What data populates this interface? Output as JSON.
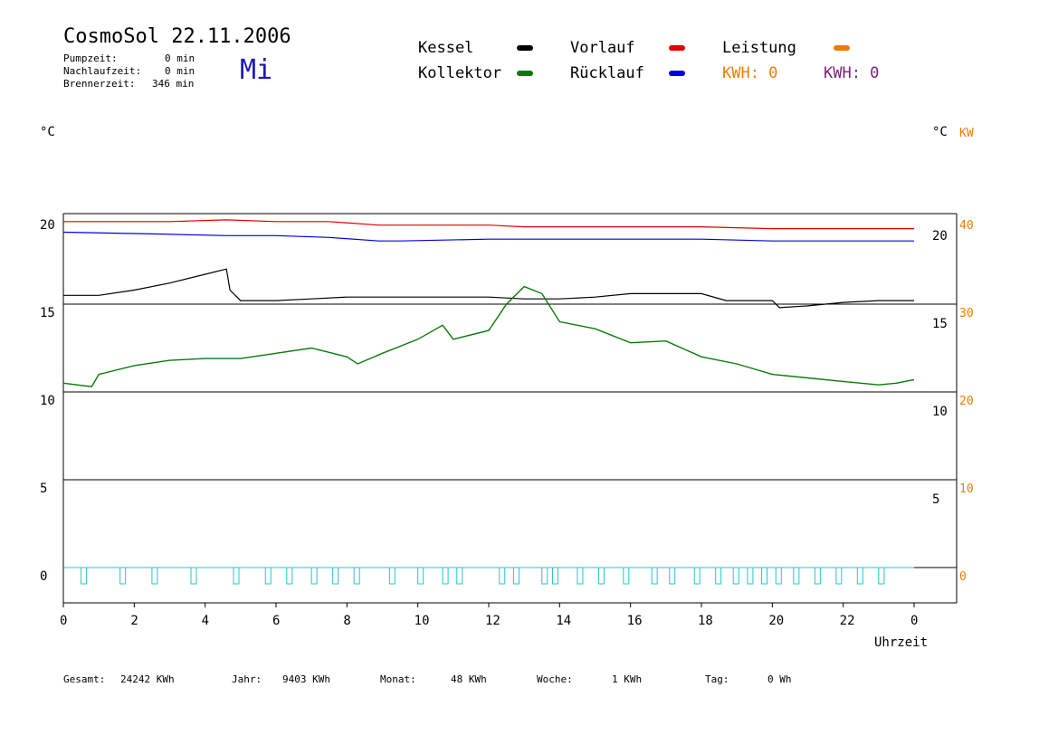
{
  "header": {
    "title": "CosmoSol 22.11.2006",
    "day": "Mi",
    "stats": [
      {
        "label": "Pumpzeit:",
        "value": "0 min"
      },
      {
        "label": "Nachlaufzeit:",
        "value": "0 min"
      },
      {
        "label": "Brennerzeit:",
        "value": "346 min"
      }
    ]
  },
  "legend": {
    "kessel": {
      "label": "Kessel",
      "color": "#000000"
    },
    "kollektor": {
      "label": "Kollektor",
      "color": "#0a7a0a"
    },
    "vorlauf": {
      "label": "Vorlauf",
      "color": "#e00000"
    },
    "ruecklauf": {
      "label": "Rücklauf",
      "color": "#0000e0"
    },
    "leistung": {
      "label": "Leistung",
      "color": "#f07c00"
    },
    "kwh_orange": "KWH: 0",
    "kwh_purple": "KWH: 0",
    "kwh_purple_color": "#7a207a"
  },
  "axes": {
    "left_unit": "°C",
    "right_unit": "°C",
    "right_unit2": "KW",
    "xlabel": "Uhrzeit"
  },
  "footer": {
    "items": [
      {
        "label": "Gesamt:",
        "value": "24242 KWh"
      },
      {
        "label": "Jahr:",
        "value": "9403 KWh"
      },
      {
        "label": "Monat:",
        "value": "48 KWh"
      },
      {
        "label": "Woche:",
        "value": "1 KWh"
      },
      {
        "label": "Tag:",
        "value": "0 Wh"
      }
    ]
  },
  "chart_data": {
    "type": "line",
    "xlim": [
      0,
      24
    ],
    "ylim": [
      -1.5,
      20.5
    ],
    "xticks": [
      "0",
      "2",
      "4",
      "6",
      "8",
      "10",
      "12",
      "14",
      "16",
      "18",
      "20",
      "22",
      "0"
    ],
    "xtick_values": [
      0,
      2,
      4,
      6,
      8,
      10,
      12,
      14,
      16,
      18,
      20,
      22,
      24
    ],
    "yticks_left": [
      "0",
      "5",
      "10",
      "15",
      "20"
    ],
    "yticks_left_values": [
      0,
      5,
      10,
      15,
      20
    ],
    "yticks_right": [
      "5",
      "10",
      "15",
      "20"
    ],
    "yticks_right_values": [
      5,
      10,
      15,
      20
    ],
    "yticks_kw": [
      "0",
      "10",
      "20",
      "30",
      "40"
    ],
    "yticks_kw_values": [
      0,
      10,
      20,
      30,
      40
    ],
    "hlines": [
      0,
      5,
      10,
      15,
      20
    ],
    "series": [
      {
        "name": "Vorlauf",
        "color": "#e00000",
        "x": [
          0,
          3,
          4.6,
          6,
          7.5,
          8.9,
          9.5,
          12,
          13,
          14,
          16,
          18,
          20,
          22,
          24
        ],
        "y": [
          19.7,
          19.7,
          19.8,
          19.7,
          19.7,
          19.5,
          19.5,
          19.5,
          19.4,
          19.4,
          19.4,
          19.4,
          19.3,
          19.3,
          19.3
        ]
      },
      {
        "name": "Rücklauf",
        "color": "#0000e0",
        "x": [
          0,
          2.5,
          4.6,
          6,
          7.5,
          8.9,
          9.5,
          12,
          14,
          16,
          18,
          20,
          22,
          24
        ],
        "y": [
          19.1,
          19.0,
          18.9,
          18.9,
          18.8,
          18.6,
          18.6,
          18.7,
          18.7,
          18.7,
          18.7,
          18.6,
          18.6,
          18.6
        ]
      },
      {
        "name": "Kessel",
        "color": "#000000",
        "x": [
          0,
          1,
          2,
          3,
          4,
          4.6,
          4.7,
          5,
          6,
          7,
          8,
          10,
          12,
          13,
          14,
          15,
          16,
          18,
          18.7,
          19.5,
          20,
          20.2,
          21,
          22,
          23,
          24
        ],
        "y": [
          15.5,
          15.5,
          15.8,
          16.2,
          16.7,
          17.0,
          15.8,
          15.2,
          15.2,
          15.3,
          15.4,
          15.4,
          15.4,
          15.3,
          15.3,
          15.4,
          15.6,
          15.6,
          15.2,
          15.2,
          15.2,
          14.8,
          14.9,
          15.1,
          15.2,
          15.2
        ]
      },
      {
        "name": "Kollektor",
        "color": "#0a7a0a",
        "x": [
          0,
          0.8,
          1,
          2,
          3,
          4,
          5,
          6,
          7,
          8,
          8.3,
          9,
          10,
          10.7,
          11,
          12,
          12.5,
          13,
          13.5,
          14,
          15,
          16,
          17,
          18,
          19,
          20,
          21,
          22,
          23,
          23.5,
          24
        ],
        "y": [
          10.5,
          10.3,
          11.0,
          11.5,
          11.8,
          11.9,
          11.9,
          12.2,
          12.5,
          12.0,
          11.6,
          12.2,
          13.0,
          13.8,
          13.0,
          13.5,
          15.0,
          16.0,
          15.6,
          14.0,
          13.6,
          12.8,
          12.9,
          12.0,
          11.6,
          11.0,
          10.8,
          10.6,
          10.4,
          10.5,
          10.7
        ]
      }
    ]
  }
}
